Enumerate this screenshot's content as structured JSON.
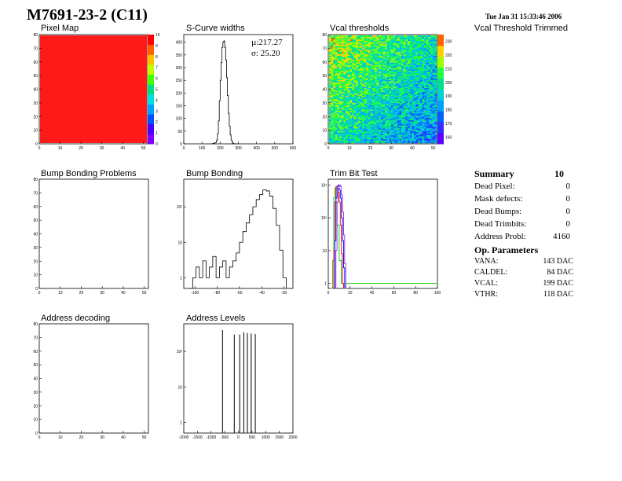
{
  "header": {
    "title": "M7691-23-2 (C11)",
    "timestamp": "Tue Jan 31 15:33:46 2006"
  },
  "panel_titles": {
    "pixel_map": "Pixel Map",
    "scurve": "S-Curve widths",
    "vcal": "Vcal thresholds",
    "vcal_trimmed": "Vcal Threshold Trimmed",
    "bump_problems": "Bump Bonding Problems",
    "bump_bonding": "Bump Bonding",
    "trim_bit": "Trim Bit Test",
    "address_decoding": "Address decoding",
    "address_levels": "Address Levels"
  },
  "scurve_stats": {
    "mu": "µ:217.27",
    "sigma": "σ: 25.20"
  },
  "summary": {
    "title": "Summary",
    "total": "10",
    "rows": [
      {
        "label": "Dead Pixel:",
        "value": "0"
      },
      {
        "label": "Mask defects:",
        "value": "0"
      },
      {
        "label": "Dead Bumps:",
        "value": "0"
      },
      {
        "label": "Dead Trimbits:",
        "value": "0"
      },
      {
        "label": "Address Probl:",
        "value": "4160"
      }
    ]
  },
  "op_parameters": {
    "title": "Op. Parameters",
    "rows": [
      {
        "label": "VANA:",
        "value": "143 DAC"
      },
      {
        "label": "CALDEL:",
        "value": "84 DAC"
      },
      {
        "label": "VCAL:",
        "value": "199 DAC"
      },
      {
        "label": "VTHR:",
        "value": "118 DAC"
      }
    ]
  },
  "colors": {
    "map_fill": "#ff1a1a",
    "line": "#000000",
    "trim_red": "#ff0000",
    "trim_green": "#00cc00",
    "trim_blue": "#0000ff",
    "trim_purple": "#8a2be2"
  },
  "chart_data": [
    {
      "id": "pixel_map",
      "type": "heatmap",
      "x_ticks": [
        "0",
        "10",
        "20",
        "30",
        "40",
        "50"
      ],
      "xlim": [
        0,
        52
      ],
      "y_ticks": [
        "0",
        "10",
        "20",
        "30",
        "40",
        "50",
        "60",
        "70",
        "80"
      ],
      "ylim": [
        0,
        80
      ],
      "z_ticks": [
        "0",
        "1",
        "2",
        "3",
        "4",
        "5",
        "6",
        "7",
        "8",
        "9",
        "10"
      ],
      "zlim": [
        0,
        10
      ],
      "uniform_value": 10
    },
    {
      "id": "scurve",
      "type": "line",
      "x_ticks": [
        "0",
        "100",
        "200",
        "300",
        "400",
        "500",
        "600"
      ],
      "xlim": [
        0,
        600
      ],
      "y_ticks": [
        "0",
        "50",
        "100",
        "150",
        "200",
        "250",
        "300",
        "350",
        "400"
      ],
      "ylim": [
        0,
        430
      ],
      "x": [
        150,
        160,
        170,
        180,
        185,
        190,
        195,
        200,
        205,
        210,
        215,
        220,
        225,
        230,
        235,
        240,
        245,
        250,
        255,
        260,
        265,
        270,
        275,
        280,
        290,
        300
      ],
      "y": [
        0,
        2,
        5,
        15,
        40,
        90,
        170,
        250,
        320,
        380,
        400,
        405,
        380,
        330,
        260,
        190,
        120,
        70,
        35,
        15,
        6,
        2,
        0,
        0,
        0,
        0
      ]
    },
    {
      "id": "vcal",
      "type": "heatmap",
      "x_ticks": [
        "0",
        "10",
        "20",
        "30",
        "40",
        "50"
      ],
      "xlim": [
        0,
        52
      ],
      "y_ticks": [
        "0",
        "10",
        "20",
        "30",
        "40",
        "50",
        "60",
        "70",
        "80"
      ],
      "ylim": [
        0,
        80
      ],
      "z_ticks": [
        "160",
        "170",
        "180",
        "190",
        "200",
        "210",
        "220",
        "230"
      ],
      "zlim": [
        155,
        235
      ]
    },
    {
      "id": "bump_problems",
      "type": "heatmap",
      "x_ticks": [
        "0",
        "10",
        "20",
        "30",
        "40",
        "50"
      ],
      "xlim": [
        0,
        52
      ],
      "y_ticks": [
        "0",
        "10",
        "20",
        "30",
        "40",
        "50",
        "60",
        "70",
        "80"
      ],
      "ylim": [
        0,
        80
      ],
      "values": []
    },
    {
      "id": "bump_bonding",
      "type": "line",
      "log_y": true,
      "x_ticks": [
        "-100",
        "-80",
        "-60",
        "-40",
        "-20"
      ],
      "xlim": [
        -110,
        -12
      ],
      "y_ticks": [
        "1",
        "10",
        "10²"
      ],
      "ylim": [
        0.5,
        600
      ],
      "x": [
        -105,
        -102,
        -99,
        -96,
        -93,
        -90,
        -87,
        -84,
        -81,
        -78,
        -75,
        -72,
        -69,
        -66,
        -63,
        -60,
        -57,
        -54,
        -51,
        -48,
        -45,
        -42,
        -39,
        -36,
        -33,
        -30,
        -27,
        -24,
        -21,
        -18
      ],
      "y": [
        0,
        1,
        2,
        1,
        3,
        1,
        2,
        4,
        1,
        2,
        3,
        1,
        2,
        3,
        5,
        10,
        20,
        35,
        60,
        100,
        160,
        220,
        300,
        280,
        200,
        90,
        30,
        6,
        1,
        0
      ]
    },
    {
      "id": "trim_bit",
      "type": "line",
      "log_y": true,
      "x_ticks": [
        "0",
        "20",
        "40",
        "60",
        "80",
        "100"
      ],
      "xlim": [
        0,
        100
      ],
      "y_ticks": [
        "1",
        "10",
        "10²",
        "10³"
      ],
      "ylim": [
        0.7,
        1500
      ],
      "series": [
        {
          "x": [
            2,
            4,
            5,
            6,
            7,
            8,
            10,
            12,
            14,
            16,
            100
          ],
          "y": [
            0,
            5,
            400,
            800,
            300,
            60,
            5,
            1,
            0,
            1,
            1
          ]
        },
        {
          "x": [
            4,
            5,
            6,
            7,
            8,
            9,
            10,
            11,
            12,
            13,
            14
          ],
          "y": [
            0,
            10,
            300,
            900,
            800,
            600,
            300,
            60,
            8,
            1,
            0
          ]
        },
        {
          "x": [
            5,
            6,
            7,
            8,
            9,
            10,
            11,
            12,
            13,
            14,
            15
          ],
          "y": [
            0,
            20,
            400,
            900,
            1000,
            700,
            400,
            100,
            20,
            3,
            0
          ]
        },
        {
          "x": [
            6,
            7,
            8,
            9,
            10,
            11,
            12,
            13,
            14,
            15,
            16
          ],
          "y": [
            0,
            10,
            300,
            800,
            1000,
            900,
            500,
            150,
            30,
            4,
            0
          ]
        }
      ]
    },
    {
      "id": "address_decoding",
      "type": "heatmap",
      "x_ticks": [
        "0",
        "10",
        "20",
        "30",
        "40",
        "50"
      ],
      "xlim": [
        0,
        52
      ],
      "y_ticks": [
        "0",
        "10",
        "20",
        "30",
        "40",
        "50",
        "60",
        "70",
        "80"
      ],
      "ylim": [
        0,
        80
      ],
      "values": []
    },
    {
      "id": "address_levels",
      "type": "line",
      "log_y": true,
      "x_ticks": [
        "-2000",
        "-1500",
        "-1000",
        "-500",
        "0",
        "500",
        "1000",
        "1500",
        "2000"
      ],
      "xlim": [
        -2000,
        2000
      ],
      "y_ticks": [
        "1",
        "10",
        "10²"
      ],
      "ylim": [
        0.5,
        600
      ],
      "x": [
        -580,
        -150,
        50,
        200,
        330,
        470,
        620
      ],
      "y": [
        400,
        300,
        300,
        350,
        330,
        320,
        310
      ]
    }
  ]
}
